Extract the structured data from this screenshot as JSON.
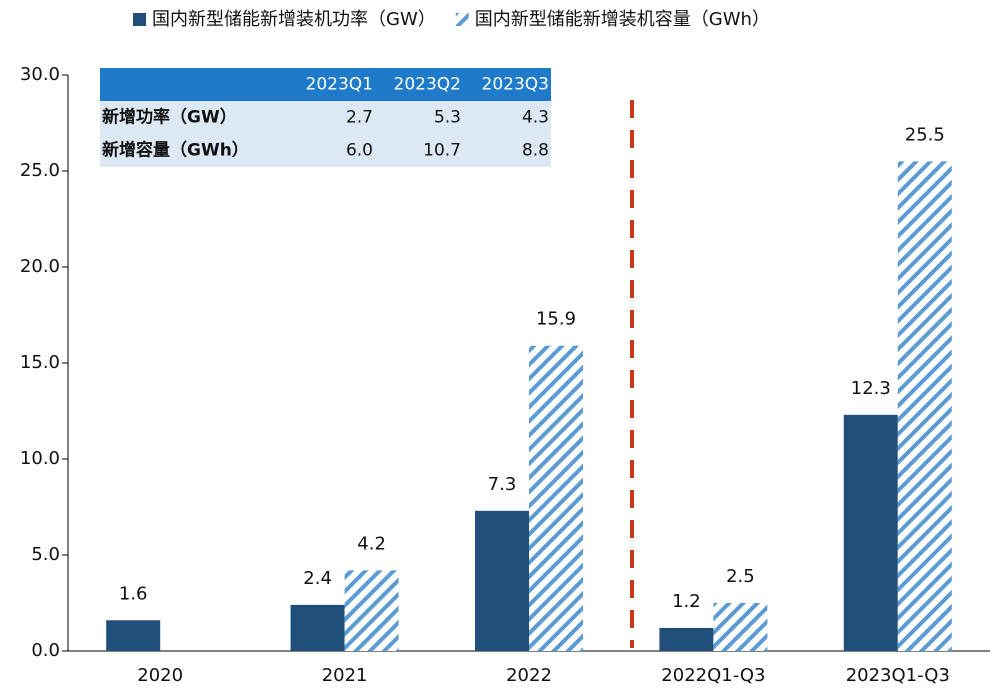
{
  "chart_data": {
    "type": "bar",
    "categories": [
      "2020",
      "2021",
      "2022",
      "2022Q1-Q3",
      "2023Q1-Q3"
    ],
    "series": [
      {
        "name": "国内新型储能新增装机功率（GW）",
        "color": "#1f4e79",
        "values": [
          1.6,
          2.4,
          7.3,
          1.2,
          12.3
        ]
      },
      {
        "name": "国内新型储能新增装机容量（GWh）",
        "color": "#5b9bd5",
        "values": [
          null,
          4.2,
          15.9,
          2.5,
          25.5
        ]
      }
    ],
    "ylim": [
      0,
      30
    ],
    "yticks": [
      {
        "value": 0,
        "label": "0.0"
      },
      {
        "value": 5,
        "label": "5.0"
      },
      {
        "value": 10,
        "label": "10.0"
      },
      {
        "value": 15,
        "label": "15.0"
      },
      {
        "value": 20,
        "label": "20.0"
      },
      {
        "value": 25,
        "label": "25.0"
      },
      {
        "value": 30,
        "label": "30.0"
      }
    ],
    "legend": "top",
    "table": {
      "columns": [
        "2023Q1",
        "2023Q2",
        "2023Q3"
      ],
      "rows": [
        {
          "label": "新增功率（GW）",
          "cells": [
            "2.7",
            "5.3",
            "4.3"
          ]
        },
        {
          "label": "新增容量（GWh）",
          "cells": [
            "6.0",
            "10.7",
            "8.8"
          ]
        }
      ]
    }
  }
}
